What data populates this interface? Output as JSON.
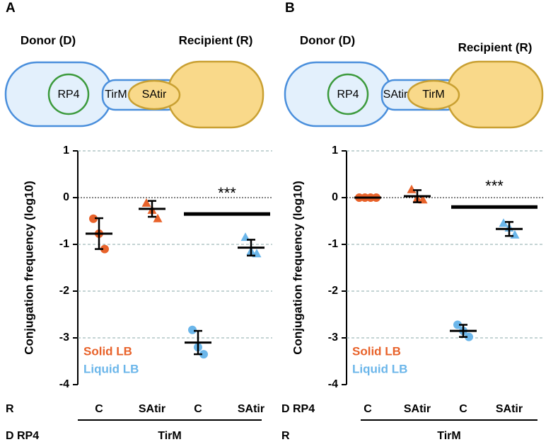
{
  "chart_data": [
    {
      "panel": "A",
      "type": "scatter",
      "diagram": {
        "donor": "Donor (D)",
        "recipient": "Recipient (R)",
        "plasmid": "RP4",
        "donor_protein": "TirM",
        "recipient_protein": "SAtir"
      },
      "ylabel": "Conjugation frequency (log10)",
      "ylim": [
        -4,
        1
      ],
      "yticks": [
        1,
        0,
        -1,
        -2,
        -3,
        -4
      ],
      "grid": true,
      "categories": [
        "C",
        "SAtir",
        "C",
        "SAtir"
      ],
      "category_row_label": "R",
      "group_row_label": "D RP4",
      "group_label": "TirM",
      "series": [
        {
          "name": "Solid LB",
          "color": "#e8622a"
        },
        {
          "name": "Liquid LB",
          "color": "#6bb6ea"
        }
      ],
      "groups": [
        {
          "series": 0,
          "marker": "circle",
          "values": [
            -0.45,
            -0.77,
            -1.1
          ],
          "mean": -0.77,
          "sd": 0.33
        },
        {
          "series": 0,
          "marker": "triangle",
          "values": [
            -0.12,
            -0.27,
            -0.45
          ],
          "mean": -0.24,
          "sd": 0.17
        },
        {
          "series": 1,
          "marker": "circle",
          "values": [
            -2.83,
            -3.2,
            -3.35
          ],
          "mean": -3.1,
          "sd": 0.25
        },
        {
          "series": 1,
          "marker": "triangle",
          "values": [
            -0.85,
            -1.15,
            -1.2
          ],
          "mean": -1.07,
          "sd": 0.17
        }
      ],
      "significance": {
        "label": "***",
        "y": -0.35
      }
    },
    {
      "panel": "B",
      "type": "scatter",
      "diagram": {
        "donor": "Donor (D)",
        "recipient": "Recipient (R)",
        "plasmid": "RP4",
        "donor_protein": "SAtir",
        "recipient_protein": "TirM"
      },
      "ylabel": "Conjugation frequency (log10)",
      "ylim": [
        -4,
        1
      ],
      "yticks": [
        1,
        0,
        -1,
        -2,
        -3,
        -4
      ],
      "grid": true,
      "categories": [
        "C",
        "SAtir",
        "C",
        "SAtir"
      ],
      "category_row_label": "D RP4",
      "group_row_label": "R",
      "group_label": "TirM",
      "series": [
        {
          "name": "Solid LB",
          "color": "#e8622a"
        },
        {
          "name": "Liquid LB",
          "color": "#6bb6ea"
        }
      ],
      "groups": [
        {
          "series": 0,
          "marker": "circle",
          "values": [
            0,
            0,
            0,
            0
          ],
          "mean": 0,
          "sd": 0
        },
        {
          "series": 0,
          "marker": "triangle",
          "values": [
            0.17,
            -0.02,
            -0.05
          ],
          "mean": 0.03,
          "sd": 0.13
        },
        {
          "series": 1,
          "marker": "circle",
          "values": [
            -2.72,
            -2.85,
            -2.98
          ],
          "mean": -2.85,
          "sd": 0.13
        },
        {
          "series": 1,
          "marker": "triangle",
          "values": [
            -0.55,
            -0.65,
            -0.8
          ],
          "mean": -0.67,
          "sd": 0.15
        }
      ],
      "significance": {
        "label": "***",
        "y": -0.2
      }
    }
  ]
}
